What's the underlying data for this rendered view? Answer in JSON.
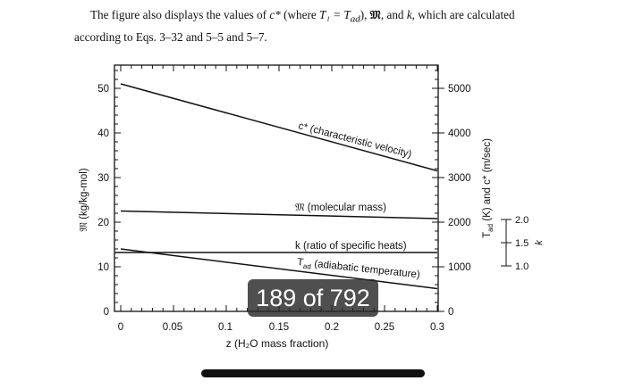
{
  "intro": {
    "line1_prefix": "The figure also displays the values of ",
    "line1_cstar": "c*",
    "line1_where": " (where ",
    "line1_T1": "T₁ = T",
    "line1_ad": "ad",
    "line1_mid": "), ",
    "line1_M": "𝔐",
    "line1_and": ", and ",
    "line1_k": "k",
    "line1_suffix": ", which are calculated",
    "line2": "according to Eqs. 3–32 and 5–5 and 5–7."
  },
  "chart_data": {
    "type": "line",
    "xlabel": "z (H₂O mass fraction)",
    "x_ticks": [
      "0",
      "0.05",
      "0.1",
      "0.15",
      "0.2",
      "0.25",
      "0.3"
    ],
    "xlim": [
      0,
      0.3
    ],
    "left_axis": {
      "label": "𝔐 (kg/kg-mol)",
      "ticks": [
        "0",
        "10",
        "20",
        "30",
        "40",
        "50"
      ],
      "ylim": [
        0,
        50
      ]
    },
    "right_axis": {
      "label": "Tad (K) and c* (m/sec)",
      "ticks": [
        "0",
        "1000",
        "2000",
        "3000",
        "4000",
        "5000"
      ],
      "ylim": [
        0,
        5000
      ]
    },
    "k_axis": {
      "label": "k",
      "ticks": [
        "1.0",
        "1.5",
        "2.0"
      ]
    },
    "series": [
      {
        "name": "c* (characteristic velocity)",
        "axis": "right",
        "x": [
          0,
          0.3
        ],
        "y": [
          5100,
          3150
        ]
      },
      {
        "name": "𝔐 (molecular mass)",
        "axis": "left",
        "x": [
          0,
          0.3
        ],
        "y": [
          22.5,
          20.8
        ]
      },
      {
        "name": "k (ratio of specific heats)",
        "axis": "k",
        "x": [
          0,
          0.3
        ],
        "y": [
          1.3,
          1.3
        ]
      },
      {
        "name": "Tad (adiabatic temperature)",
        "axis": "right",
        "x": [
          0,
          0.3
        ],
        "y": [
          1400,
          510
        ]
      }
    ],
    "labels": {
      "cstar_main": "c* (characteristic velocity)",
      "m_main": "𝔐 (molecular mass)",
      "k_main": "k (ratio of specific heats)",
      "tad_T": "T",
      "tad_sub": "ad",
      "tad_rest": " (adiabatic temperature)",
      "right_axis_T": "T",
      "right_axis_sub": "ad",
      "right_axis_rest": " (K) and c* (m/sec)",
      "k_axis_label": "k"
    }
  },
  "overlay": {
    "page_counter": "189 of 792"
  }
}
